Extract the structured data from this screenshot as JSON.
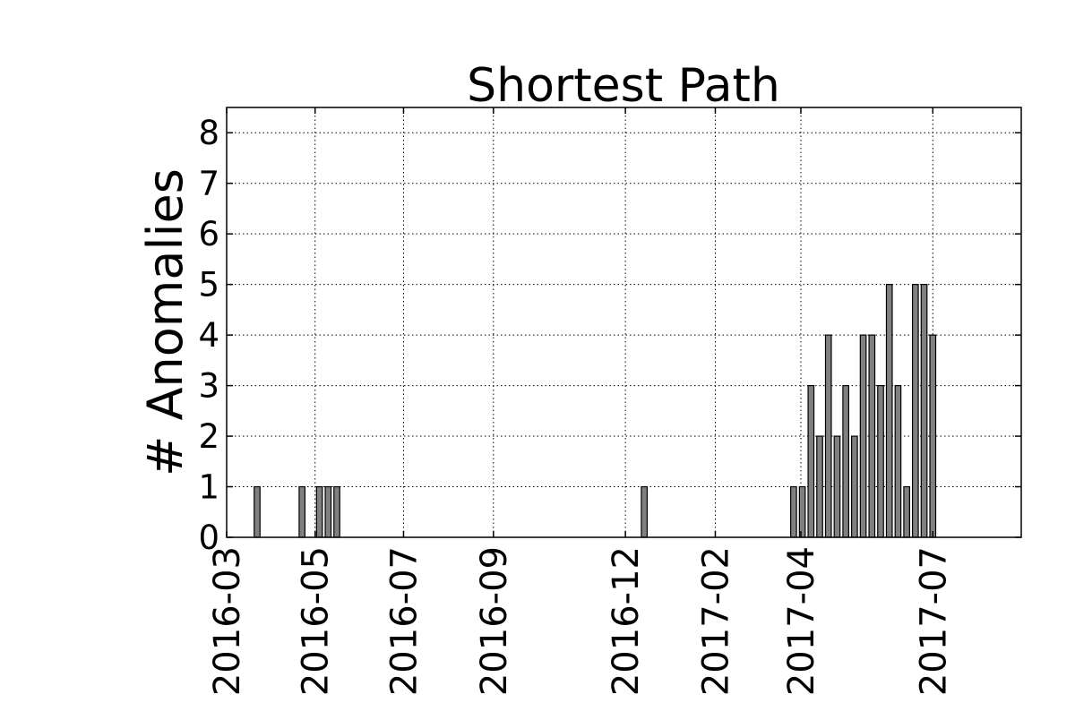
{
  "chart_data": {
    "type": "bar",
    "title": "Shortest Path",
    "xlabel": "",
    "ylabel": "# Anomalies",
    "ylim": [
      0,
      8.5
    ],
    "yticks": [
      0,
      1,
      2,
      3,
      4,
      5,
      6,
      7,
      8
    ],
    "xlim": [
      "2016-03-01",
      "2017-08-31"
    ],
    "xticks": [
      "2016-03",
      "2016-05",
      "2016-07",
      "2016-09",
      "2016-12",
      "2017-02",
      "2017-04",
      "2017-07"
    ],
    "grid": true,
    "bar_color": "#808080",
    "bar_width_days": 4,
    "x": [
      "2016-03-20",
      "2016-04-20",
      "2016-05-02",
      "2016-05-08",
      "2016-05-14",
      "2016-12-12",
      "2017-03-25",
      "2017-03-31",
      "2017-04-06",
      "2017-04-12",
      "2017-04-18",
      "2017-04-24",
      "2017-04-30",
      "2017-05-06",
      "2017-05-12",
      "2017-05-18",
      "2017-05-24",
      "2017-05-30",
      "2017-06-05",
      "2017-06-11",
      "2017-06-17",
      "2017-06-23",
      "2017-06-29",
      "2017-07-05"
    ],
    "values": [
      1,
      1,
      1,
      1,
      1,
      1,
      1,
      1,
      3,
      2,
      4,
      2,
      3,
      2,
      4,
      4,
      3,
      5,
      3,
      1,
      5,
      5,
      4,
      0
    ]
  }
}
